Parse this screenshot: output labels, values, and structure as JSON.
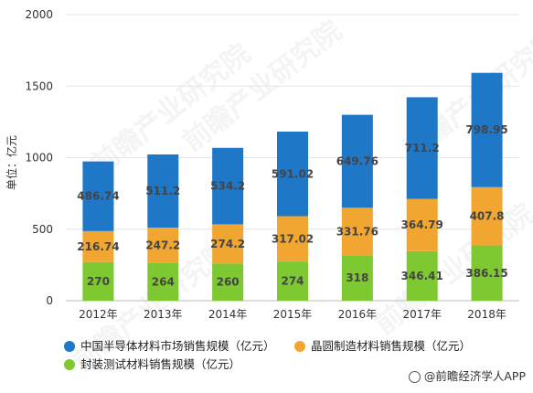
{
  "chart_data": {
    "type": "bar",
    "stacked": true,
    "categories": [
      "2012年",
      "2013年",
      "2014年",
      "2015年",
      "2016年",
      "2017年",
      "2018年"
    ],
    "series": [
      {
        "name": "封装测试材料销售规模（亿元）",
        "values": [
          270,
          264,
          260,
          274,
          318,
          346.41,
          386.15
        ],
        "labels": [
          "270",
          "264",
          "260",
          "274",
          "318",
          "346.41",
          "386.15"
        ],
        "color": "#7ec832"
      },
      {
        "name": "晶圆制造材料销售规模（亿元）",
        "values": [
          216.74,
          247.2,
          274.2,
          317.02,
          331.76,
          364.79,
          407.8
        ],
        "labels": [
          "216.74",
          "247.2",
          "274.2",
          "317.02",
          "331.76",
          "364.79",
          "407.8"
        ],
        "color": "#f0a630"
      },
      {
        "name": "中国半导体材料市场销售规模（亿元）",
        "values": [
          486.74,
          511.2,
          534.2,
          591.02,
          649.76,
          711.2,
          798.95
        ],
        "labels": [
          "486.74",
          "511.2",
          "534.2",
          "591.02",
          "649.76",
          "711.2",
          "798.95"
        ],
        "color": "#1f77c8"
      }
    ],
    "ylabel": "单位：亿元",
    "ylim": [
      0,
      2000
    ],
    "yticks": [
      0,
      500,
      1000,
      1500,
      2000
    ],
    "grid": true,
    "legend_position": "bottom"
  },
  "legend": {
    "item1": "中国半导体材料市场销售规模（亿元）",
    "item2": "晶圆制造材料销售规模（亿元）",
    "item3": "封装测试材料销售规模（亿元）"
  },
  "credit": "@前瞻经济学人APP",
  "watermark": "前瞻产业研究院"
}
